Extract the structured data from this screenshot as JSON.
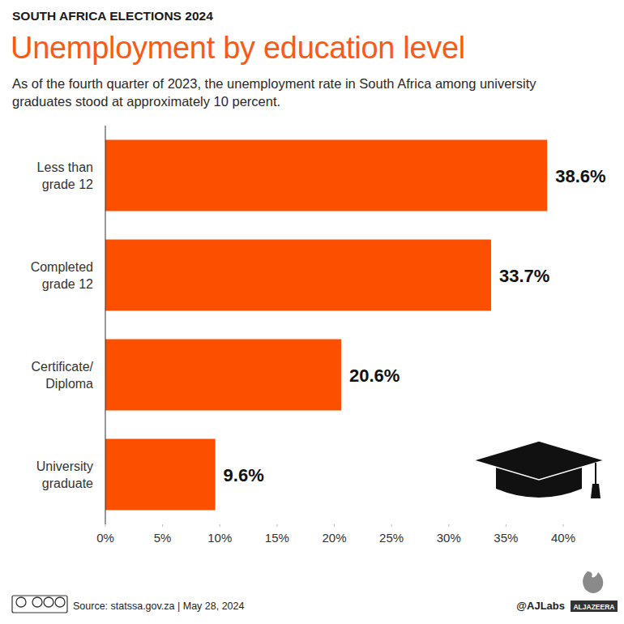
{
  "chart_data": {
    "type": "bar",
    "orientation": "horizontal",
    "kicker": "SOUTH AFRICA ELECTIONS 2024",
    "title": "Unemployment by education level",
    "subtitle": "As of the fourth quarter of 2023, the unemployment rate in South Africa among university graduates stood at approximately 10 percent.",
    "categories": [
      "Less than\ngrade 12",
      "Completed\ngrade 12",
      "Certificate/\nDiploma",
      "University\ngraduate"
    ],
    "values": [
      38.6,
      33.7,
      20.6,
      9.6
    ],
    "value_labels": [
      "38.6%",
      "33.7%",
      "20.6%",
      "9.6%"
    ],
    "data_labels": true,
    "color": "#fc4f00",
    "xlim": [
      0,
      40
    ],
    "xticks": [
      {
        "value": 0,
        "label": "0%"
      },
      {
        "value": 5,
        "label": "5%"
      },
      {
        "value": 10,
        "label": "10%"
      },
      {
        "value": 15,
        "label": "15%"
      },
      {
        "value": 20,
        "label": "20%"
      },
      {
        "value": 25,
        "label": "25%"
      },
      {
        "value": 30,
        "label": "30%"
      },
      {
        "value": 35,
        "label": "35%"
      },
      {
        "value": 40,
        "label": "40%"
      }
    ],
    "grid": false,
    "source": "Source: statssa.gov.za | May 28, 2024",
    "credit": "@AJLabs",
    "brand": "ALJAZEERA"
  }
}
